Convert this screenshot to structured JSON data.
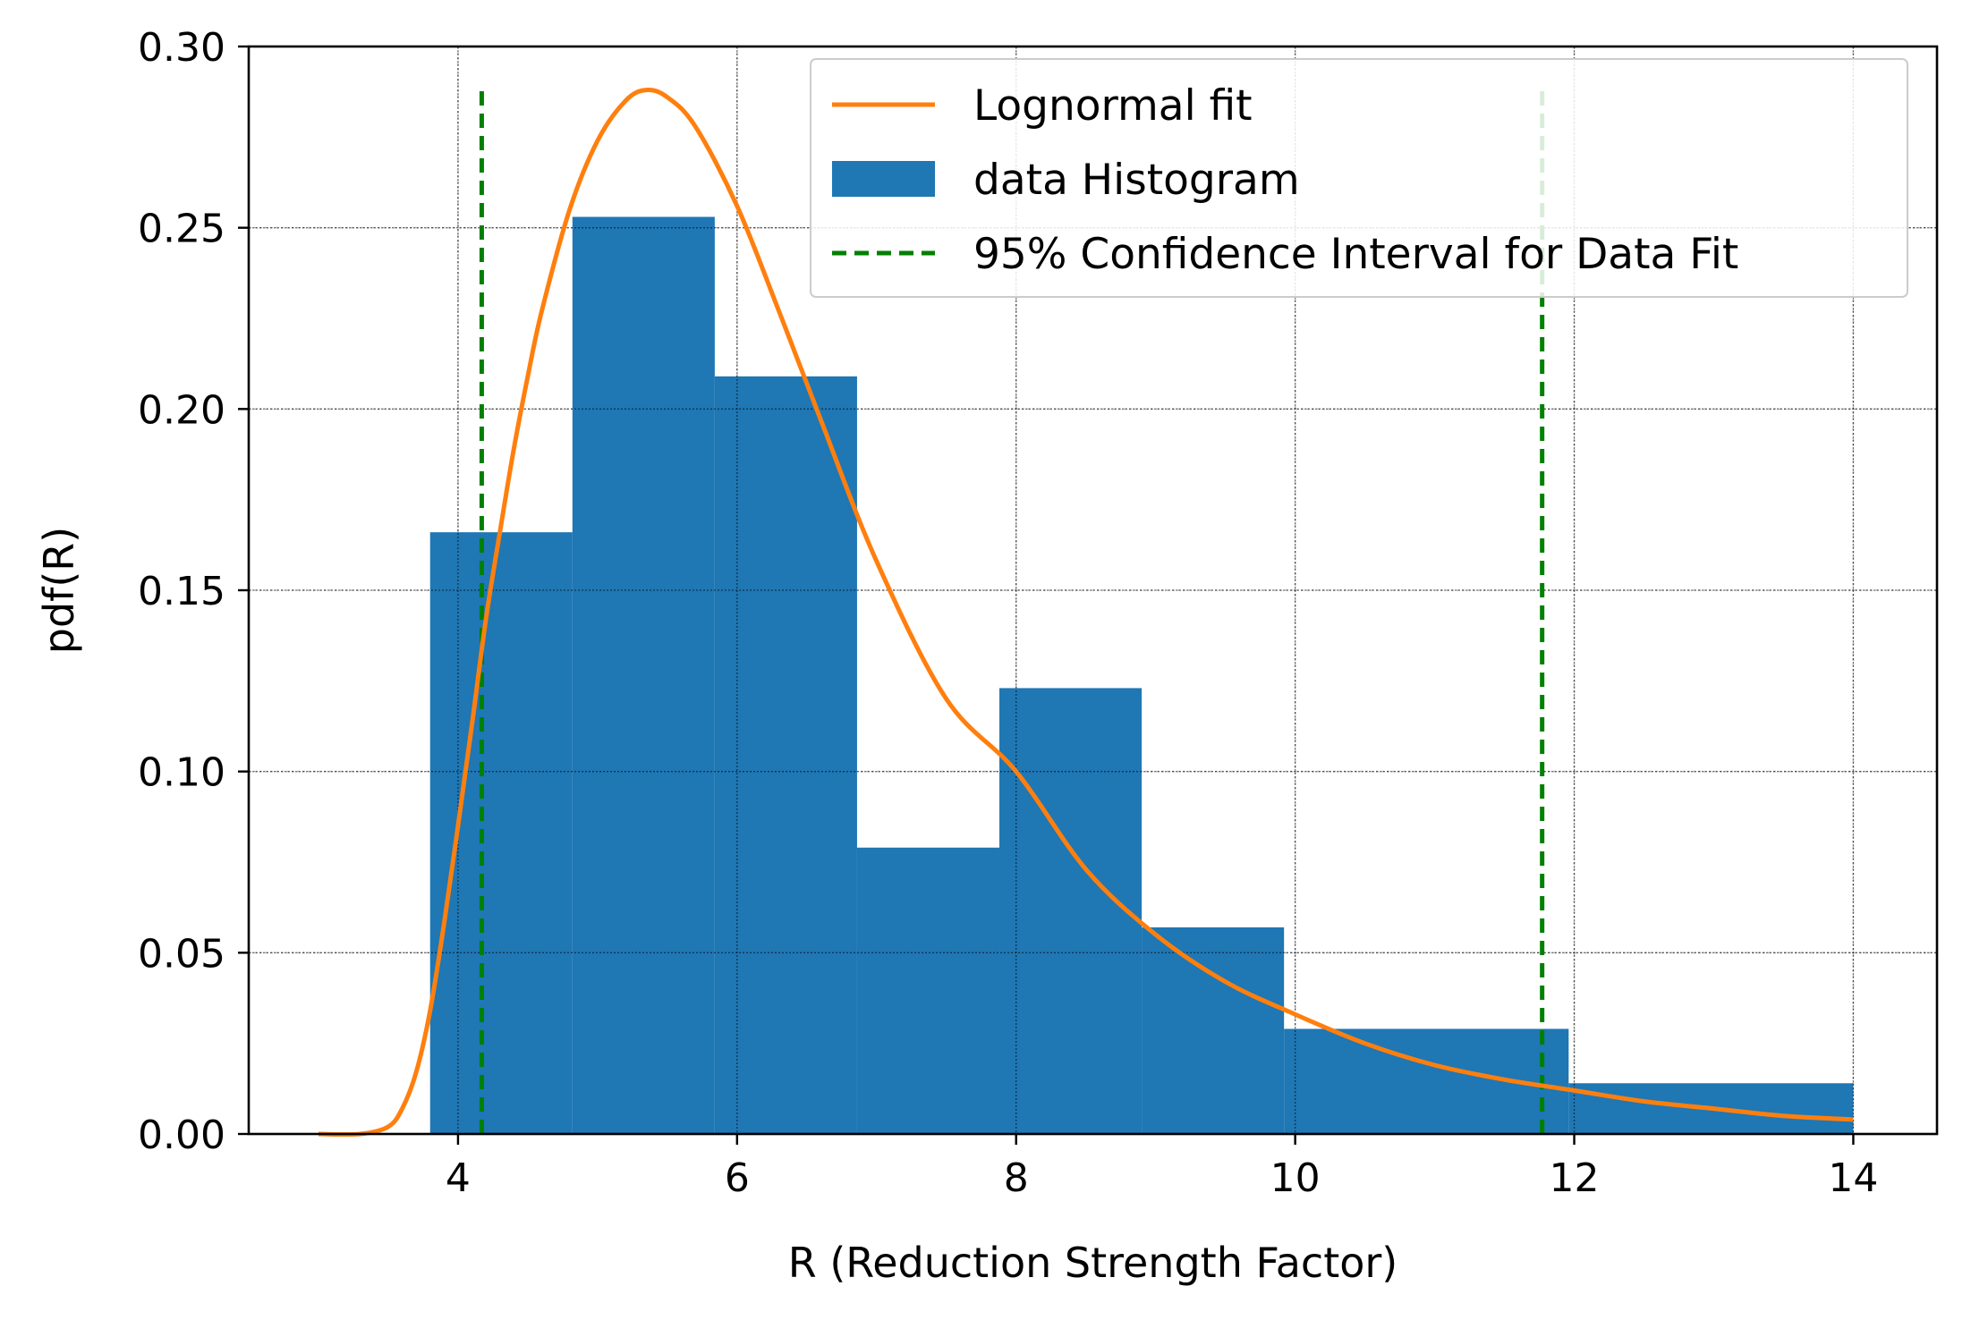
{
  "chart_data": {
    "type": "histogram",
    "title": "",
    "xlabel": "R (Reduction Strength Factor)",
    "ylabel": "pdf(R)",
    "xlim": [
      2.5,
      14.6
    ],
    "ylim": [
      0.0,
      0.3
    ],
    "xticks": [
      4,
      6,
      8,
      10,
      12,
      14
    ],
    "yticks": [
      0.0,
      0.05,
      0.1,
      0.15,
      0.2,
      0.25,
      0.3
    ],
    "xtick_labels": [
      "4",
      "6",
      "8",
      "10",
      "12",
      "14"
    ],
    "ytick_labels": [
      "0.00",
      "0.05",
      "0.10",
      "0.15",
      "0.20",
      "0.25",
      "0.30"
    ],
    "grid": true,
    "legend_position": "top-right",
    "histogram": {
      "name": "data Histogram",
      "color": "#1f77b4",
      "bins": [
        {
          "x0": 3.8,
          "x1": 4.82,
          "value": 0.166
        },
        {
          "x0": 4.82,
          "x1": 5.84,
          "value": 0.253
        },
        {
          "x0": 5.84,
          "x1": 6.86,
          "value": 0.209
        },
        {
          "x0": 6.86,
          "x1": 7.88,
          "value": 0.079
        },
        {
          "x0": 7.88,
          "x1": 8.9,
          "value": 0.123
        },
        {
          "x0": 8.9,
          "x1": 9.92,
          "value": 0.057
        },
        {
          "x0": 9.92,
          "x1": 11.96,
          "value": 0.029
        },
        {
          "x0": 11.96,
          "x1": 14.0,
          "value": 0.014
        }
      ]
    },
    "lognormal_fit": {
      "name": "Lognormal fit",
      "color": "#ff7f0e",
      "x": [
        3.0,
        3.3,
        3.5,
        3.6,
        3.7,
        3.8,
        3.9,
        4.0,
        4.1,
        4.2,
        4.3,
        4.4,
        4.5,
        4.6,
        4.8,
        5.0,
        5.2,
        5.35,
        5.5,
        5.7,
        6.0,
        6.3,
        6.6,
        7.0,
        7.5,
        8.0,
        8.5,
        9.0,
        9.5,
        10.0,
        10.5,
        11.0,
        11.5,
        12.0,
        12.5,
        13.0,
        13.5,
        14.0
      ],
      "y": [
        0.0,
        0.0,
        0.002,
        0.007,
        0.017,
        0.034,
        0.058,
        0.085,
        0.113,
        0.142,
        0.166,
        0.189,
        0.209,
        0.227,
        0.255,
        0.274,
        0.285,
        0.288,
        0.286,
        0.278,
        0.256,
        0.227,
        0.197,
        0.158,
        0.12,
        0.1,
        0.073,
        0.055,
        0.042,
        0.033,
        0.025,
        0.019,
        0.015,
        0.012,
        0.009,
        0.007,
        0.005,
        0.004
      ]
    },
    "confidence_interval": {
      "name": "95% Confidence Interval for Data Fit",
      "color": "#008000",
      "lower": 4.17,
      "upper": 11.77,
      "y_top": 0.288
    }
  }
}
